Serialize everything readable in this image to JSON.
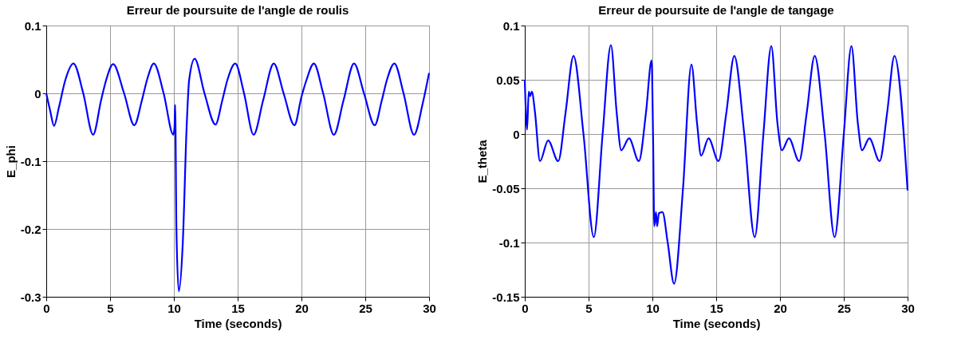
{
  "chart_data": [
    {
      "type": "line",
      "title": "Erreur de poursuite de l'angle de roulis",
      "xlabel": "Time (seconds)",
      "ylabel": "E_phi",
      "xlim": [
        0,
        30
      ],
      "xticks": [
        0,
        5,
        10,
        15,
        20,
        25,
        30
      ],
      "ylim": [
        -0.3,
        0.1
      ],
      "yticks": [
        -0.3,
        -0.2,
        -0.1,
        0,
        0.1
      ],
      "grid": true,
      "marker": "none",
      "line_style": "solid",
      "series": [
        {
          "color": "#0000ff",
          "x": [
            0,
            0.3,
            0.61,
            1.0,
            1.5,
            2.13,
            2.9,
            3.67,
            4.3,
            4.7,
            5.24,
            6.1,
            6.9,
            7.5,
            7.9,
            8.43,
            9.2,
            9.96,
            10.05,
            10.1,
            10.2,
            10.39,
            10.7,
            11.0,
            11.2,
            11.63,
            12.4,
            13.26,
            13.8,
            14.2,
            14.81,
            15.5,
            16.25,
            17.0,
            17.83,
            18.6,
            19.45,
            20.0,
            20.4,
            20.97,
            21.7,
            22.54,
            23.3,
            24.12,
            24.9,
            25.74,
            26.3,
            26.7,
            27.28,
            28.0,
            28.82,
            29.5,
            30
          ],
          "values": [
            0,
            -0.025,
            -0.048,
            -0.02,
            0.02,
            0.044,
            0.0,
            -0.061,
            -0.01,
            0.02,
            0.043,
            0.0,
            -0.047,
            -0.01,
            0.02,
            0.044,
            0.0,
            -0.061,
            -0.05,
            -0.017,
            -0.2,
            -0.292,
            -0.22,
            -0.05,
            0.02,
            0.051,
            0.0,
            -0.046,
            -0.01,
            0.02,
            0.044,
            0.0,
            -0.061,
            -0.01,
            0.044,
            0.0,
            -0.047,
            -0.005,
            0.02,
            0.044,
            0.0,
            -0.061,
            -0.01,
            0.044,
            0.0,
            -0.047,
            -0.01,
            0.02,
            0.044,
            0.0,
            -0.061,
            -0.015,
            0.03
          ]
        }
      ]
    },
    {
      "type": "line",
      "title": "Erreur de poursuite de l'angle de tangage",
      "xlabel": "Time (seconds)",
      "ylabel": "E_theta",
      "xlim": [
        0,
        30
      ],
      "xticks": [
        0,
        5,
        10,
        15,
        20,
        25,
        30
      ],
      "ylim": [
        -0.15,
        0.1
      ],
      "yticks": [
        -0.15,
        -0.1,
        -0.05,
        0,
        0.05,
        0.1
      ],
      "grid": true,
      "marker": "none",
      "line_style": "solid",
      "series": [
        {
          "color": "#0000ff",
          "x": [
            0,
            0.18,
            0.31,
            0.42,
            0.55,
            0.8,
            1.19,
            1.83,
            2.62,
            3.2,
            3.82,
            4.6,
            5.41,
            6.1,
            6.75,
            7.2,
            7.56,
            8.17,
            8.94,
            9.5,
            9.94,
            10.05,
            10.15,
            10.28,
            10.37,
            10.51,
            10.79,
            11.2,
            11.7,
            12.4,
            13.06,
            13.5,
            13.82,
            14.4,
            15.18,
            15.8,
            16.42,
            17.2,
            18.02,
            18.7,
            19.32,
            19.8,
            20.15,
            20.7,
            21.5,
            22.1,
            22.72,
            23.5,
            24.28,
            25.0,
            25.6,
            26.1,
            26.43,
            27.0,
            27.81,
            28.4,
            28.97,
            30
          ],
          "values": [
            0.05,
            0.004,
            0.039,
            0.035,
            0.039,
            0.02,
            -0.025,
            -0.006,
            -0.025,
            0.02,
            0.072,
            0.0,
            -0.095,
            0.0,
            0.082,
            0.02,
            -0.015,
            -0.004,
            -0.025,
            0.02,
            0.068,
            0.0,
            -0.085,
            -0.072,
            -0.085,
            -0.073,
            -0.072,
            -0.1,
            -0.138,
            -0.05,
            0.064,
            0.01,
            -0.02,
            -0.004,
            -0.025,
            0.02,
            0.072,
            0.0,
            -0.095,
            0.0,
            0.081,
            0.01,
            -0.015,
            -0.004,
            -0.025,
            0.02,
            0.072,
            0.0,
            -0.095,
            0.0,
            0.081,
            0.01,
            -0.015,
            -0.004,
            -0.025,
            0.02,
            0.072,
            -0.052
          ]
        }
      ]
    }
  ]
}
